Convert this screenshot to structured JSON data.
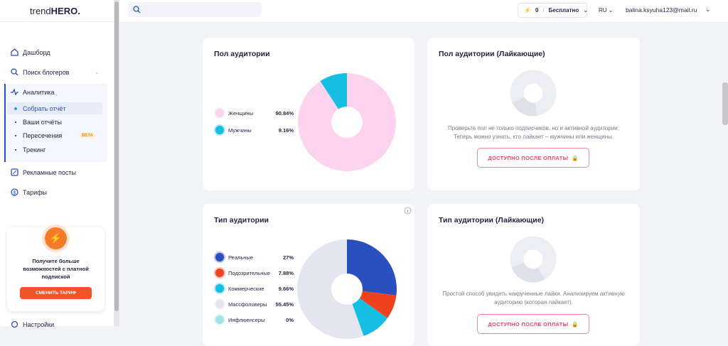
{
  "brand": {
    "light": "trend",
    "bold": "HERO."
  },
  "sidebar": {
    "items": [
      "Дашборд",
      "Поиск блогеров",
      "Аналитика"
    ],
    "submenu": [
      "Собрать отчёт",
      "Ваши отчёты",
      "Пересечения",
      "Трекинг"
    ],
    "beta": "BETA",
    "items_after": [
      "Рекламные посты",
      "Тарифы"
    ],
    "promo": {
      "text": "Получите больше возможностей с платной подпиской",
      "button": "СМЕНИТЬ ТАРИФ"
    },
    "settings": "Настройки"
  },
  "topbar": {
    "balance": "0",
    "separator": "/",
    "plan": "Бесплатно",
    "lang": "RU",
    "email": "balina.ksyuha123@mail.ru"
  },
  "cards": [
    {
      "title": "Пол аудитории",
      "chart": {
        "type": "pie",
        "categories": [
          "Женщины",
          "Мужчины"
        ],
        "values": [
          90.84,
          9.16
        ],
        "value_labels": [
          "90.84%",
          "9.16%"
        ],
        "colors": [
          "#fdd3f0",
          "#14bfe2"
        ]
      }
    },
    {
      "title": "Пол аудитории (Лайкающие)",
      "text": "Проверьте пол не только подписчиков, но и активной аудитории. Теперь можно узнать, кто лайкает – мужчины или женщины.",
      "button": "ДОСТУПНО ПОСЛЕ ОПЛАТЫ"
    },
    {
      "title": "Тип аудитории",
      "chart": {
        "type": "pie",
        "categories": [
          "Реальные",
          "Подозрительные",
          "Коммерческие",
          "Массфоловеры",
          "Инфлюенсеры"
        ],
        "values": [
          27,
          7.88,
          9.66,
          55.45,
          0
        ],
        "value_labels": [
          "27%",
          "7.88%",
          "9.66%",
          "55.45%",
          "0%"
        ],
        "colors": [
          "#2a4fbf",
          "#f1421f",
          "#14bfe2",
          "#e3e5f0",
          "#a3e3e6"
        ]
      }
    },
    {
      "title": "Тип аудитории (Лайкающие)",
      "text": "Простой способ увидеть накрученные лайки. Анализируем активную аудиторию (которая лайкает).",
      "button": "ДОСТУПНО ПОСЛЕ ОПЛАТЫ"
    }
  ]
}
